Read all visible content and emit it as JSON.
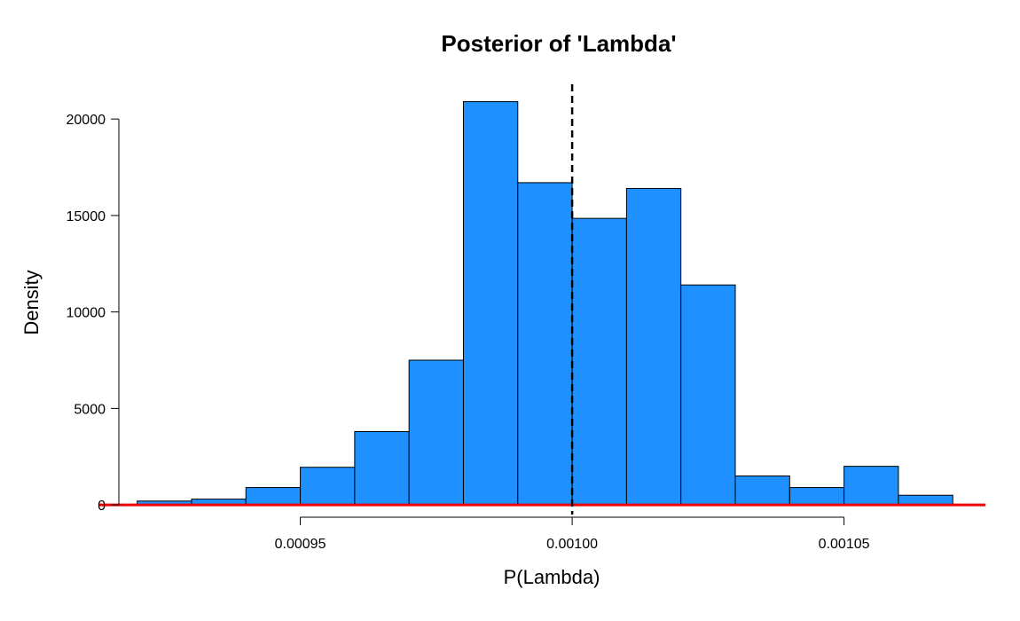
{
  "chart_data": {
    "type": "bar",
    "title": "Posterior of 'Lambda'",
    "xlabel": "P(Lambda)",
    "ylabel": "Density",
    "bin_edges": [
      0.00092,
      0.00093,
      0.00094,
      0.00095,
      0.00096,
      0.00097,
      0.00098,
      0.00099,
      0.001,
      0.00101,
      0.00102,
      0.00103,
      0.00104,
      0.00105,
      0.00106,
      0.00107
    ],
    "values": [
      200,
      300,
      900,
      1950,
      3800,
      7500,
      20900,
      16700,
      14850,
      16400,
      11400,
      1500,
      900,
      2000,
      500
    ],
    "xlim": [
      0.000915,
      0.001076
    ],
    "ylim": [
      -500,
      21800
    ],
    "x_ticks": [
      {
        "value": 0.00095,
        "label": "0.00095"
      },
      {
        "value": 0.001,
        "label": "0.00100"
      },
      {
        "value": 0.00105,
        "label": "0.00105"
      }
    ],
    "y_ticks": [
      {
        "value": 0,
        "label": "0"
      },
      {
        "value": 5000,
        "label": "5000"
      },
      {
        "value": 10000,
        "label": "10000"
      },
      {
        "value": 15000,
        "label": "15000"
      },
      {
        "value": 20000,
        "label": "20000"
      }
    ],
    "reference_line_x": 0.001,
    "baseline_y": 0,
    "grid": false,
    "colors": {
      "bar_fill": "#1E90FF",
      "bar_stroke": "#000000",
      "baseline": "#EE0000",
      "reference_line": "#000000"
    }
  }
}
